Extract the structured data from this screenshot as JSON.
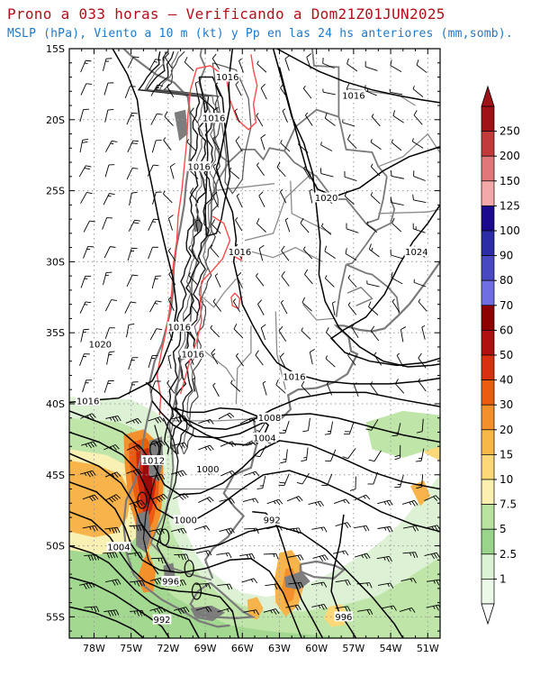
{
  "title": "Prono a 033 horas — Verificando a Dom21Z01JUN2025",
  "subtitle": "MSLP (hPa), Viento a 10 m (kt) y Pp en las 24 hs anteriores (mm,somb).",
  "map": {
    "lon_range": [
      -80,
      -50
    ],
    "lat_range": [
      -56.5,
      -15
    ],
    "lat_ticks": [
      "15S",
      "20S",
      "25S",
      "30S",
      "35S",
      "40S",
      "45S",
      "50S",
      "55S"
    ],
    "lon_ticks": [
      "78W",
      "75W",
      "72W",
      "69W",
      "66W",
      "63W",
      "60W",
      "57W",
      "54W",
      "51W"
    ],
    "grid": "dotted",
    "isobar_labels": [
      {
        "text": "1016",
        "lon": -67.2,
        "lat": -17.0
      },
      {
        "text": "1016",
        "lon": -68.3,
        "lat": -19.9
      },
      {
        "text": "1016",
        "lon": -69.5,
        "lat": -23.3
      },
      {
        "text": "1016",
        "lon": -57.0,
        "lat": -18.3
      },
      {
        "text": "1016",
        "lon": -66.2,
        "lat": -29.3
      },
      {
        "text": "1020",
        "lon": -59.2,
        "lat": -25.5
      },
      {
        "text": "1024",
        "lon": -51.9,
        "lat": -29.3
      },
      {
        "text": "1016",
        "lon": -71.1,
        "lat": -34.6
      },
      {
        "text": "1020",
        "lon": -77.5,
        "lat": -35.8
      },
      {
        "text": "1016",
        "lon": -70.0,
        "lat": -36.5
      },
      {
        "text": "1016",
        "lon": -78.5,
        "lat": -39.8
      },
      {
        "text": "1016",
        "lon": -61.8,
        "lat": -38.1
      },
      {
        "text": "1008",
        "lon": -63.8,
        "lat": -41.0
      },
      {
        "text": "1004",
        "lon": -64.2,
        "lat": -42.4
      },
      {
        "text": "1012",
        "lon": -73.2,
        "lat": -44.0
      },
      {
        "text": "1000",
        "lon": -68.8,
        "lat": -44.6
      },
      {
        "text": "1000",
        "lon": -70.6,
        "lat": -48.2
      },
      {
        "text": "992",
        "lon": -63.6,
        "lat": -48.2
      },
      {
        "text": "1004",
        "lon": -76.0,
        "lat": -50.1
      },
      {
        "text": "996",
        "lon": -71.8,
        "lat": -52.5
      },
      {
        "text": "992",
        "lon": -72.5,
        "lat": -55.2
      },
      {
        "text": "996",
        "lon": -57.8,
        "lat": -55.0
      }
    ]
  },
  "colorbar": {
    "ticks": [
      "250",
      "200",
      "150",
      "125",
      "100",
      "90",
      "80",
      "70",
      "60",
      "50",
      "40",
      "30",
      "20",
      "15",
      "10",
      "7.5",
      "5",
      "2.5",
      "1"
    ],
    "colors": [
      "#9e1218",
      "#c23a3a",
      "#e0787a",
      "#f4a8a8",
      "#1a0a8c",
      "#2b2ca6",
      "#4848c0",
      "#6e6ee0",
      "#8c0000",
      "#b01010",
      "#d83010",
      "#ec5c10",
      "#f4902c",
      "#f8b848",
      "#fcd878",
      "#fcf0b0",
      "#b8e4a0",
      "#98d48a",
      "#dcf2d4",
      "#ecf8e8"
    ]
  }
}
